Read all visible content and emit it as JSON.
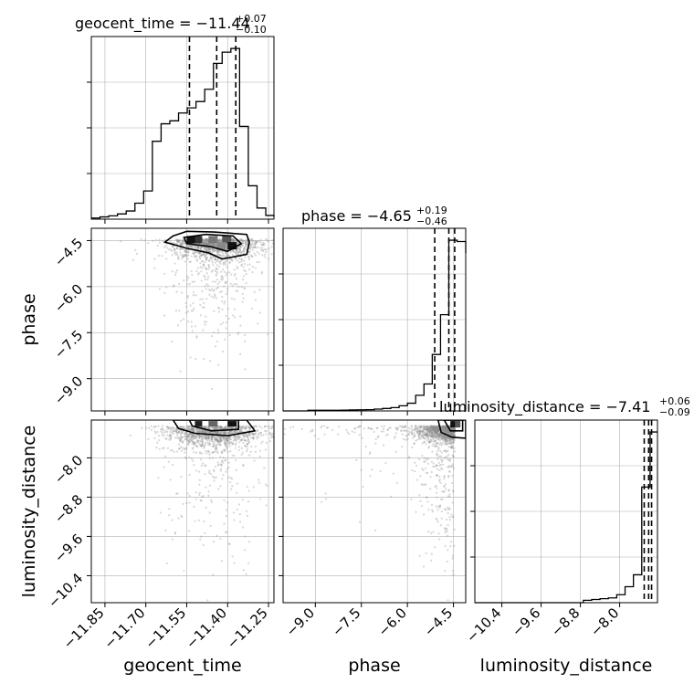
{
  "chart_data": {
    "type": "corner",
    "parameters": [
      "geocent_time",
      "phase",
      "luminosity_distance"
    ],
    "titles": [
      {
        "param": "geocent_time",
        "text": "geocent_time = −11.44",
        "sup": "+0.07",
        "sub": "−0.10"
      },
      {
        "param": "phase",
        "text": "phase = −4.65",
        "sup": "+0.19",
        "sub": "−0.46"
      },
      {
        "param": "luminosity_distance",
        "text": "luminosity_distance = −7.41",
        "sup": "+0.06",
        "sub": "−0.09"
      }
    ],
    "axes": {
      "geocent_time": {
        "range": [
          -11.9,
          -11.23
        ],
        "ticks": [
          -11.85,
          -11.7,
          -11.55,
          -11.4,
          -11.25
        ],
        "tick_labels": [
          "−11.85",
          "−11.70",
          "−11.55",
          "−11.40",
          "−11.25"
        ]
      },
      "phase": {
        "range": [
          -10.05,
          -4.1
        ],
        "ticks": [
          -9.0,
          -7.5,
          -6.0,
          -4.5
        ],
        "tick_labels": [
          "−9.0",
          "−7.5",
          "−6.0",
          "−4.5"
        ]
      },
      "luminosity_distance": {
        "range": [
          -10.95,
          -7.23
        ],
        "ticks": [
          -10.4,
          -9.6,
          -8.8,
          -8.0
        ],
        "tick_labels": [
          "−10.4",
          "−9.6",
          "−8.8",
          "−8.0"
        ]
      }
    },
    "histograms": {
      "geocent_time": {
        "bins": [
          -11.9,
          -11.868,
          -11.836,
          -11.804,
          -11.772,
          -11.74,
          -11.708,
          -11.676,
          -11.644,
          -11.612,
          -11.58,
          -11.548,
          -11.516,
          -11.484,
          -11.452,
          -11.42,
          -11.388,
          -11.356,
          -11.324,
          -11.292,
          -11.26,
          -11.23
        ],
        "counts": [
          0.3,
          0.6,
          0.9,
          1.4,
          2.2,
          4.3,
          7.6,
          21.0,
          25.7,
          26.5,
          28.6,
          30.0,
          31.7,
          35.0,
          42.0,
          45.0,
          46.0,
          25.0,
          9.0,
          3.0,
          1.0,
          0.6
        ],
        "quantiles": [
          -11.54,
          -11.44,
          -11.37
        ]
      },
      "phase": {
        "bins": [
          -10.05,
          -9.78,
          -9.51,
          -9.24,
          -8.97,
          -8.7,
          -8.43,
          -8.16,
          -7.89,
          -7.62,
          -7.35,
          -7.08,
          -6.81,
          -6.54,
          -6.27,
          -6.0,
          -5.73,
          -5.46,
          -5.19,
          -4.92,
          -4.65,
          -4.38,
          -4.1
        ],
        "counts": [
          0,
          0,
          0,
          0.5,
          0.5,
          0.5,
          0.5,
          0.6,
          0.8,
          0.9,
          1.0,
          1.4,
          1.9,
          2.6,
          4.0,
          6.0,
          12.2,
          21.0,
          44.0,
          75.0,
          133.0,
          132.0,
          123.0
        ],
        "quantiles": [
          -5.11,
          -4.65,
          -4.46
        ]
      },
      "luminosity_distance": {
        "bins": [
          -10.95,
          -10.78,
          -10.61,
          -10.44,
          -10.27,
          -10.1,
          -9.93,
          -9.76,
          -9.59,
          -9.42,
          -9.25,
          -9.08,
          -8.91,
          -8.74,
          -8.57,
          -8.4,
          -8.23,
          -8.06,
          -7.89,
          -7.72,
          -7.55,
          -7.38,
          -7.23
        ],
        "counts": [
          0,
          0,
          0,
          0,
          0,
          0,
          0,
          0,
          0,
          0,
          0,
          0,
          0,
          0.3,
          0.4,
          0.5,
          0.6,
          1.0,
          2.0,
          3.5,
          14.5,
          21.4,
          21.4
        ],
        "quantiles": [
          -7.5,
          -7.41,
          -7.35
        ]
      }
    }
  }
}
